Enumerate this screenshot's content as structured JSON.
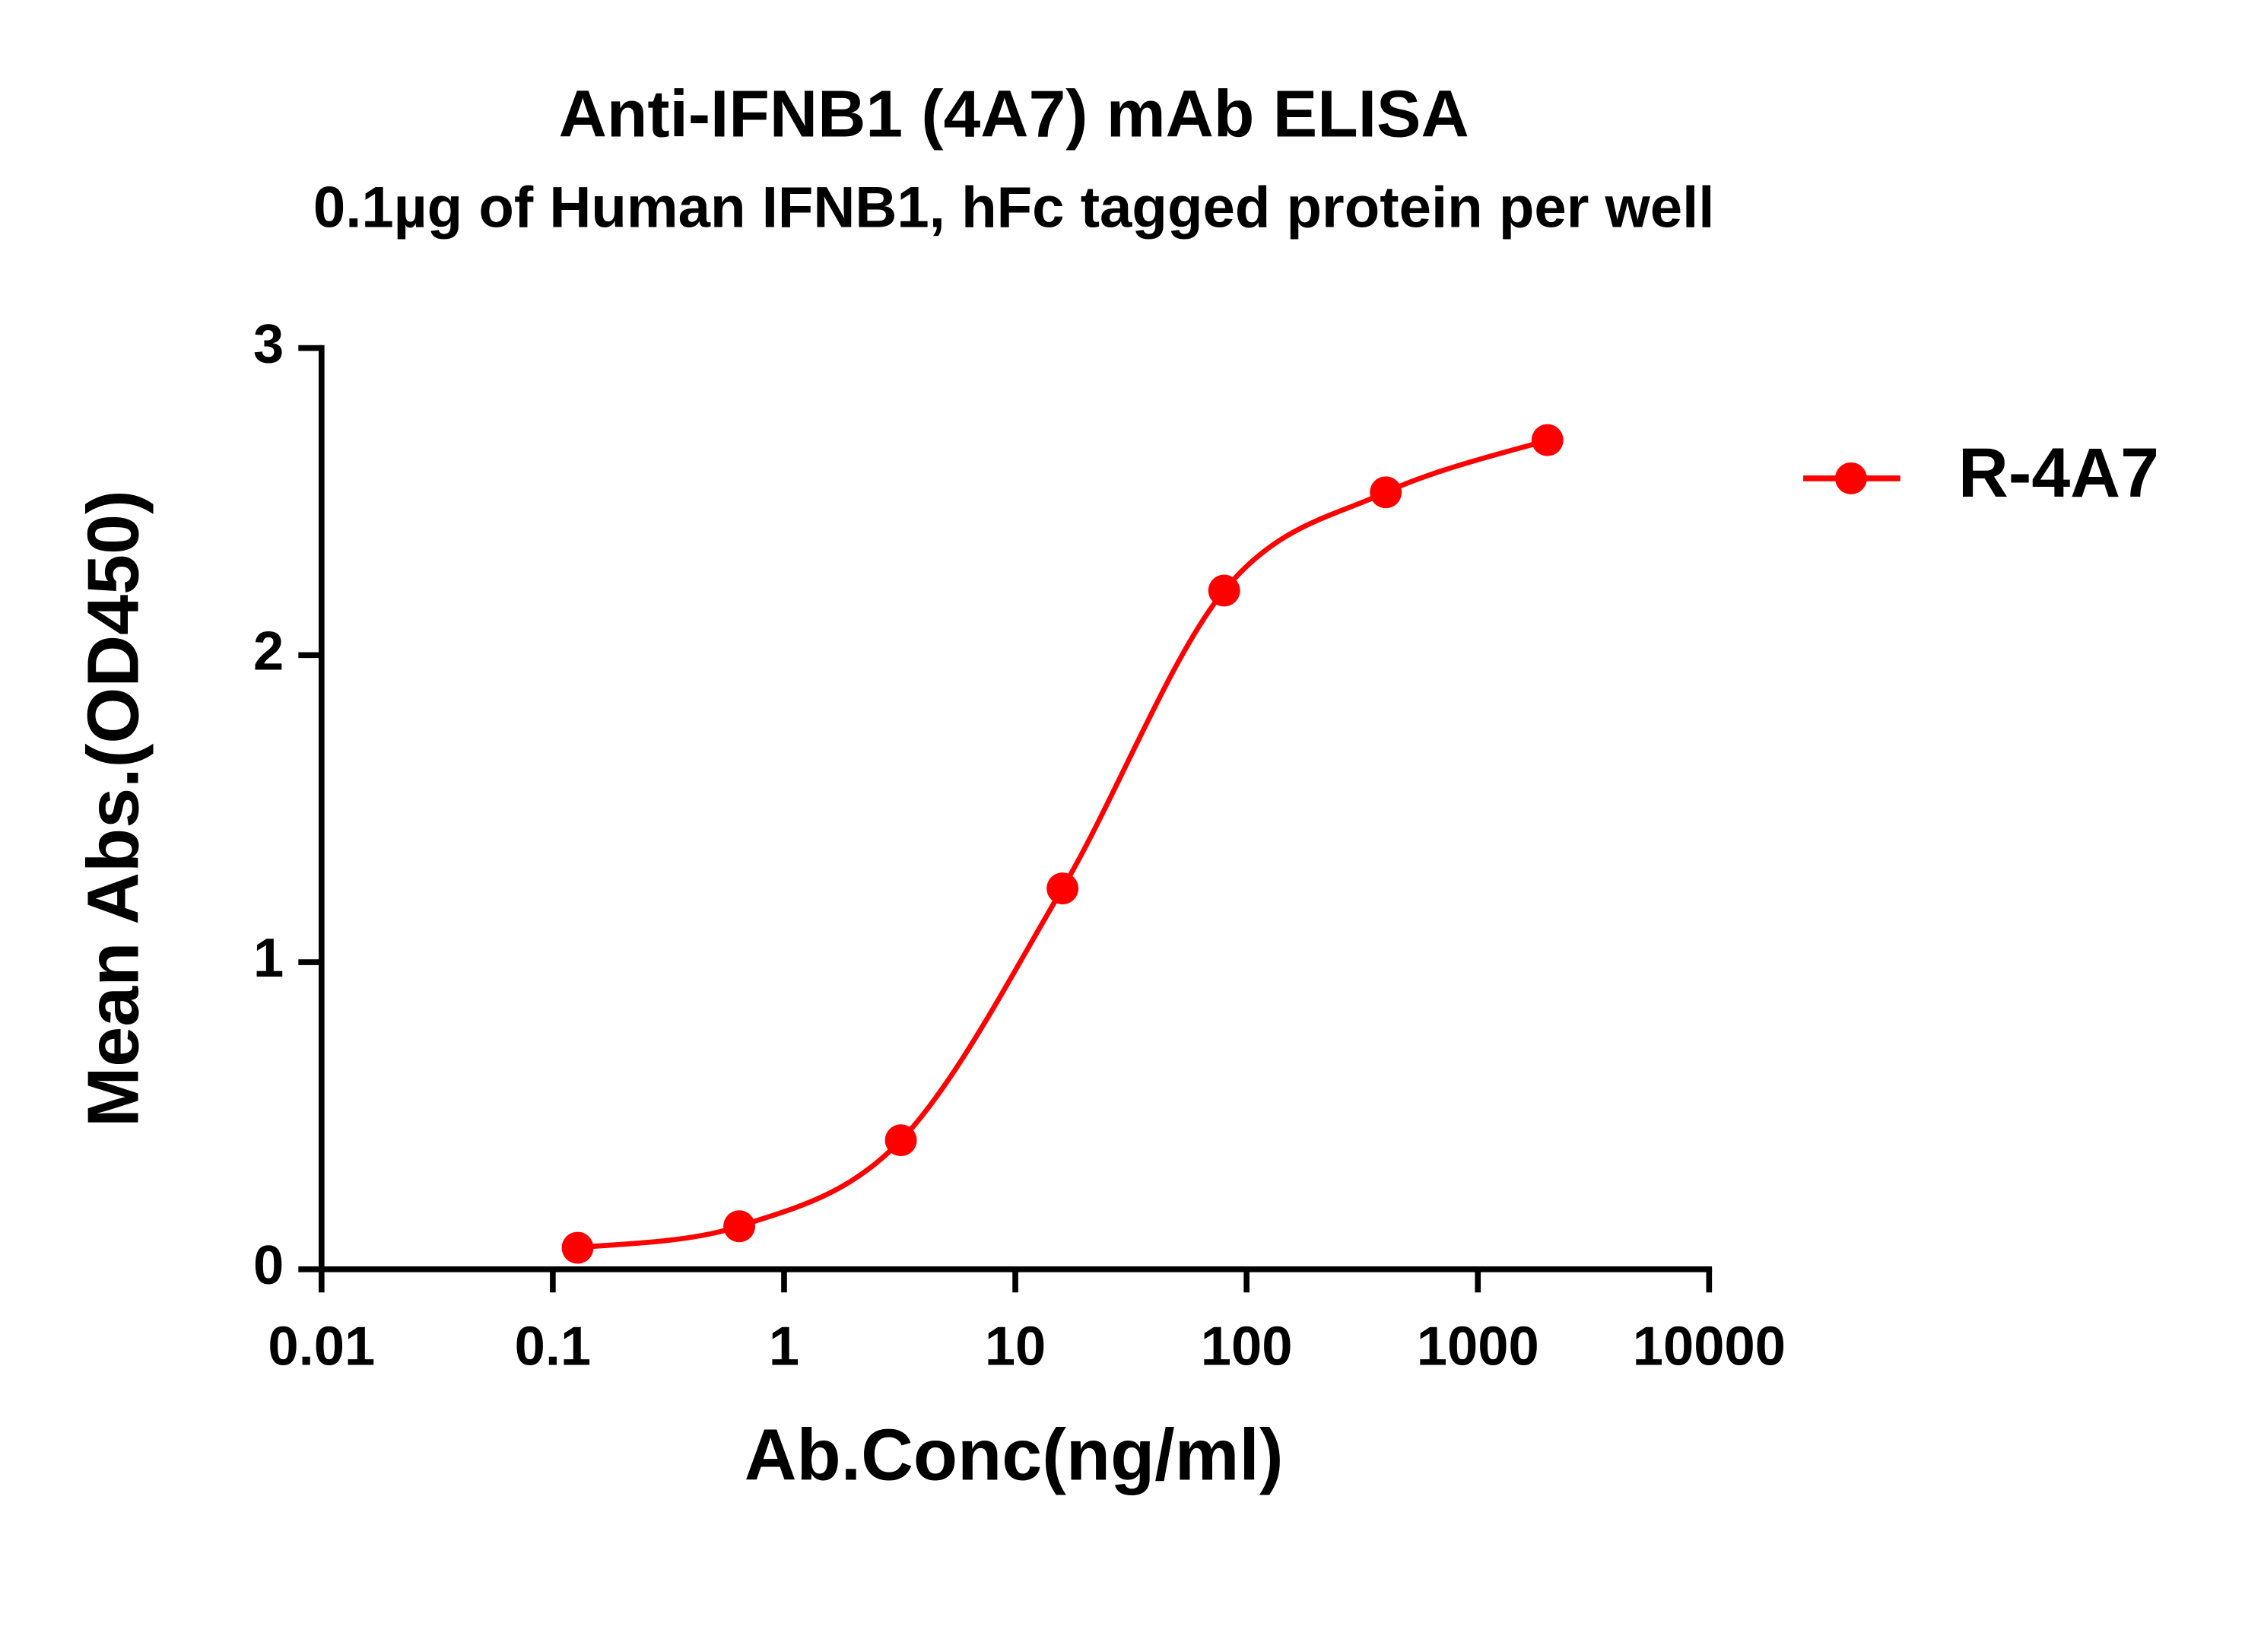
{
  "chart_data": {
    "type": "line",
    "title": "Anti-IFNB1 (4A7) mAb ELISA",
    "subtitle": "0.1µg of Human IFNB1, hFc tagged protein per well",
    "x_label": "Ab.Conc(ng/ml)",
    "y_label": "Mean Abs.(OD450)",
    "x": [
      0.128,
      0.64,
      3.2,
      16,
      80,
      400,
      2000
    ],
    "series": [
      {
        "name": "R-4A7",
        "color": "#ff0000",
        "values": [
          0.07,
          0.14,
          0.42,
          1.24,
          2.21,
          2.53,
          2.7
        ]
      }
    ],
    "x_scale": "log",
    "xlim": [
      0.01,
      10000
    ],
    "xticks": [
      0.01,
      0.1,
      1,
      10,
      100,
      1000,
      10000
    ],
    "ylim": [
      0,
      3
    ],
    "yticks": [
      0,
      1,
      2,
      3
    ],
    "legend": "right"
  }
}
